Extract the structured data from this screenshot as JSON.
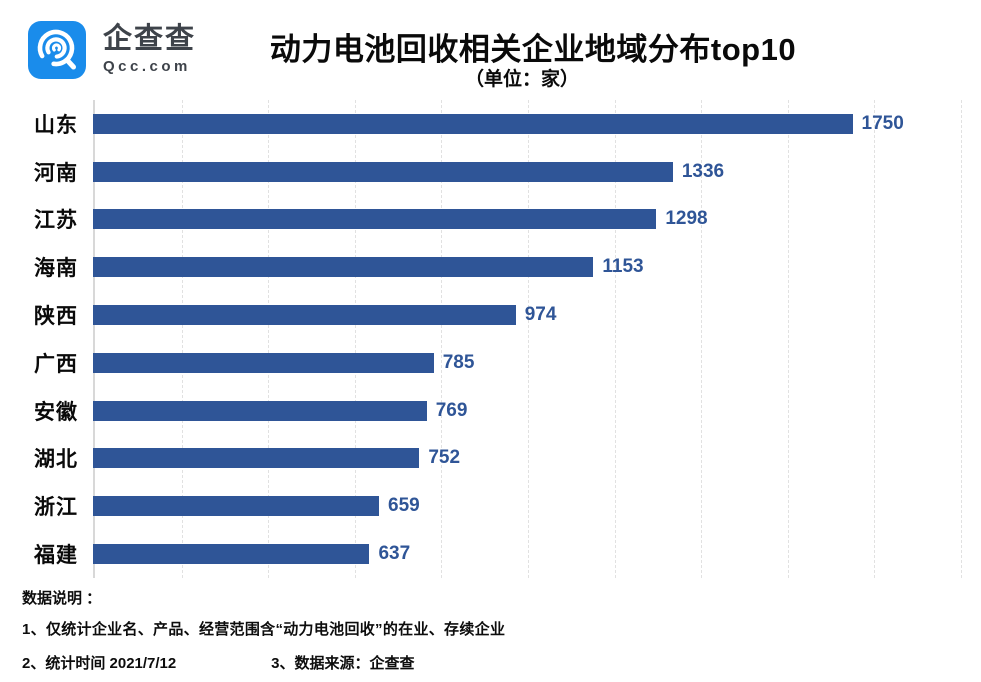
{
  "brand": {
    "logo_text": "企查查",
    "logo_sub": "Qcc.com",
    "logo_color": "#1a8ceb",
    "logo_text_color": "#3e434a"
  },
  "header": {
    "title": "动力电池回收相关企业地域分布top10",
    "subtitle": "（单位：家）"
  },
  "chart_data": {
    "type": "bar",
    "orientation": "horizontal",
    "title": "动力电池回收相关企业地域分布top10",
    "unit_label": "（单位：家）",
    "categories": [
      "山东",
      "河南",
      "江苏",
      "海南",
      "陕西",
      "广西",
      "安徽",
      "湖北",
      "浙江",
      "福建"
    ],
    "values": [
      1750,
      1336,
      1298,
      1153,
      974,
      785,
      769,
      752,
      659,
      637
    ],
    "xlim": [
      0,
      2000
    ],
    "gridline_interval": 200,
    "grid": "vertical-dashed",
    "legend": "none",
    "bar_color": "#2f5597",
    "value_label_color": "#2f5597",
    "axis_line_color": "#d8d8d8"
  },
  "footer": {
    "heading": "数据说明 ：",
    "note1": "1、仅统计企业名、产品、经营范围含“动力电池回收”的在业、存续企业",
    "note2": "2、统计时间 2021/7/12",
    "note3": "3、数据来源：企查查"
  }
}
